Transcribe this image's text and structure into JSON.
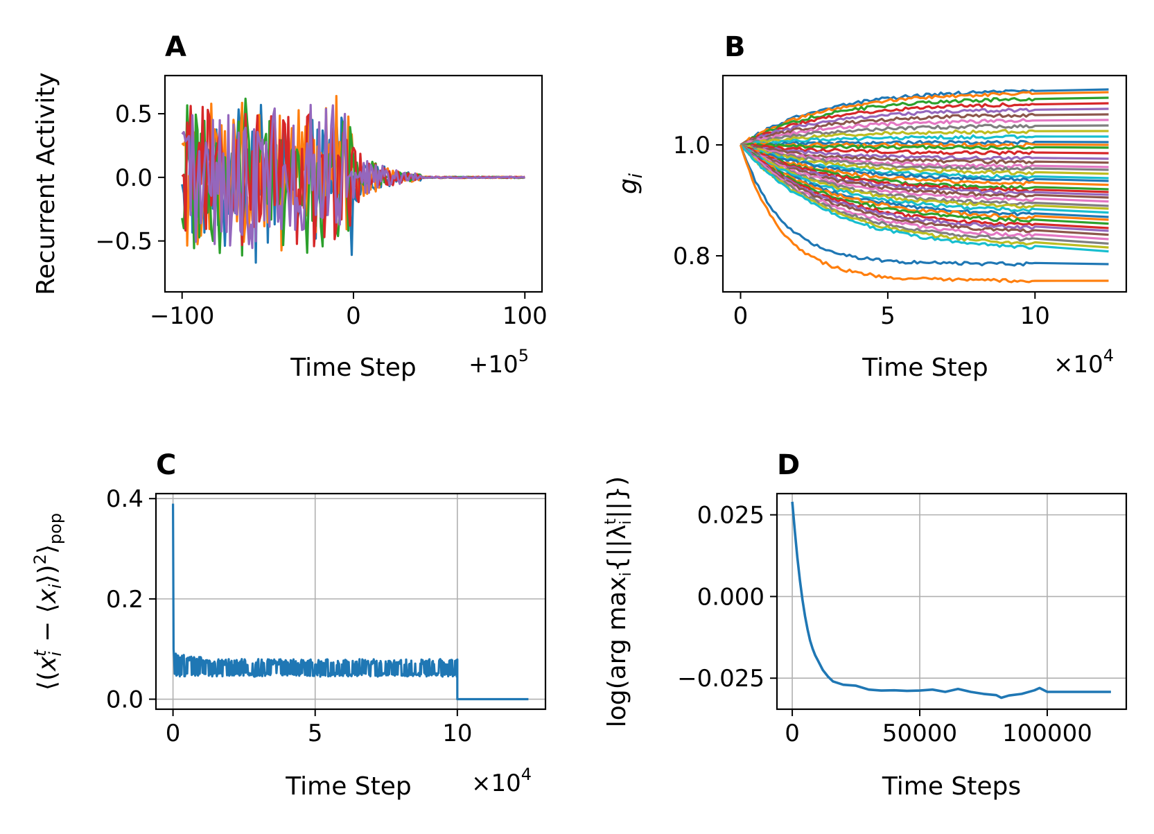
{
  "colors": {
    "tab_blue": "#1f77b4",
    "tab_orange": "#ff7f0e",
    "tab_green": "#2ca02c",
    "tab_red": "#d62728",
    "tab_purple": "#9467bd",
    "tab_brown": "#8c564b",
    "tab_pink": "#e377c2",
    "tab_gray": "#7f7f7f",
    "tab_olive": "#bcbd22",
    "tab_cyan": "#17becf",
    "grid": "#b0b0b0"
  },
  "chart_data": [
    {
      "panel": "A",
      "type": "line",
      "title": "A",
      "xlabel": "Time Step",
      "ylabel": "Recurrent Activity",
      "x_offset_label": "+10",
      "x_offset_exponent": "5",
      "xlim": [
        -110,
        110
      ],
      "ylim": [
        -0.9,
        0.8
      ],
      "xticks": [
        -100,
        0,
        100
      ],
      "xtick_labels": [
        "−100",
        "0",
        "100"
      ],
      "yticks": [
        -0.5,
        0.0,
        0.5
      ],
      "ytick_labels": [
        "−0.5",
        "0.0",
        "0.5"
      ],
      "grid": false,
      "n_series": 5,
      "series_colors": [
        "#1f77b4",
        "#ff7f0e",
        "#2ca02c",
        "#d62728",
        "#9467bd"
      ],
      "description_points": {
        "chaotic_until": 0,
        "damped_until": 40,
        "settled_value": 0.0,
        "amplitude_before_0": 0.4,
        "max": 0.73,
        "min": -0.83
      }
    },
    {
      "panel": "B",
      "type": "line",
      "title": "B",
      "xlabel": "Time Step",
      "ylabel": "g",
      "ylabel_subscript": "i",
      "x_scale_label": "×10",
      "x_scale_exponent": "4",
      "xlim": [
        -0.6,
        13.1
      ],
      "ylim": [
        0.735,
        1.125
      ],
      "xticks": [
        0,
        5,
        10
      ],
      "xtick_labels": [
        "0",
        "5",
        "10"
      ],
      "yticks": [
        0.8,
        1.0
      ],
      "ytick_labels": [
        "0.8",
        "1.0"
      ],
      "grid": false,
      "start_value": 1.0,
      "plasticity_ends": 10,
      "x_end": 12.5,
      "final_values": [
        1.1,
        1.095,
        1.085,
        1.075,
        1.065,
        1.055,
        1.045,
        1.035,
        1.025,
        1.015,
        1.005,
        1.0,
        0.995,
        0.985,
        0.975,
        0.968,
        0.96,
        0.955,
        0.948,
        0.94,
        0.935,
        0.928,
        0.92,
        0.915,
        0.91,
        0.905,
        0.898,
        0.89,
        0.885,
        0.878,
        0.87,
        0.865,
        0.858,
        0.85,
        0.845,
        0.838,
        0.83,
        0.822,
        0.815,
        0.808,
        0.785,
        0.755
      ],
      "series_colors": [
        "#1f77b4",
        "#ff7f0e",
        "#2ca02c",
        "#d62728",
        "#9467bd",
        "#8c564b",
        "#e377c2",
        "#7f7f7f",
        "#bcbd22",
        "#17becf"
      ]
    },
    {
      "panel": "C",
      "type": "line",
      "title": "C",
      "xlabel": "Time Step",
      "ylabel_parts": {
        "open": "⟨(",
        "x1": "x",
        "x1_sub": "i",
        "x1_sup": "t",
        "minus": " − ⟨",
        "x2": "x",
        "x2_sub": "i",
        "close": "⟩)",
        "power": "2",
        "end": "⟩",
        "pop": "pop"
      },
      "x_scale_label": "×10",
      "x_scale_exponent": "4",
      "xlim": [
        -0.6,
        13.1
      ],
      "ylim": [
        -0.02,
        0.41
      ],
      "xticks": [
        0,
        5,
        10
      ],
      "xtick_labels": [
        "0",
        "5",
        "10"
      ],
      "yticks": [
        0.0,
        0.2,
        0.4
      ],
      "ytick_labels": [
        "0.0",
        "0.2",
        "0.4"
      ],
      "grid": true,
      "series_color": "#1f77b4",
      "spike": {
        "x": 0,
        "y": 0.39
      },
      "band": {
        "x_start": 0,
        "x_end": 10,
        "low": 0.045,
        "high": 0.08,
        "center": 0.06
      },
      "tail": {
        "x_start": 10,
        "x_end": 12.5,
        "y": 0.0
      }
    },
    {
      "panel": "D",
      "type": "line",
      "title": "D",
      "xlabel": "Time Steps",
      "ylabel_parts": {
        "log": "log",
        "open": "(",
        "argmax": "arg max",
        "argmax_sub": "i",
        "brace_open": "{||λ",
        "lam_sub": "i",
        "lam_sup": "t",
        "brace_close": "||})"
      },
      "xlim": [
        -6000,
        131000
      ],
      "ylim": [
        -0.0345,
        0.0315
      ],
      "xticks": [
        0,
        50000,
        100000
      ],
      "xtick_labels": [
        "0",
        "50000",
        "100000"
      ],
      "yticks": [
        -0.025,
        0.0,
        0.025
      ],
      "ytick_labels": [
        "−0.025",
        "0.000",
        "0.025"
      ],
      "grid": true,
      "series_color": "#1f77b4",
      "x": [
        0,
        1000,
        2000,
        3000,
        4000,
        5000,
        6000,
        7000,
        8000,
        9000,
        10000,
        12000,
        14000,
        16000,
        18000,
        20000,
        25000,
        30000,
        35000,
        40000,
        45000,
        50000,
        55000,
        60000,
        65000,
        70000,
        75000,
        80000,
        82000,
        85000,
        90000,
        95000,
        97000,
        100000,
        105000,
        110000,
        115000,
        120000,
        125000
      ],
      "y": [
        0.029,
        0.02,
        0.012,
        0.005,
        -0.001,
        -0.006,
        -0.01,
        -0.0135,
        -0.016,
        -0.018,
        -0.0195,
        -0.0225,
        -0.0245,
        -0.026,
        -0.0265,
        -0.027,
        -0.0273,
        -0.0285,
        -0.0288,
        -0.0287,
        -0.0289,
        -0.0288,
        -0.0285,
        -0.0292,
        -0.0283,
        -0.0292,
        -0.0298,
        -0.0302,
        -0.031,
        -0.0303,
        -0.0298,
        -0.0287,
        -0.028,
        -0.0292,
        -0.0292,
        -0.0292,
        -0.0292,
        -0.0292,
        -0.0292
      ]
    }
  ]
}
